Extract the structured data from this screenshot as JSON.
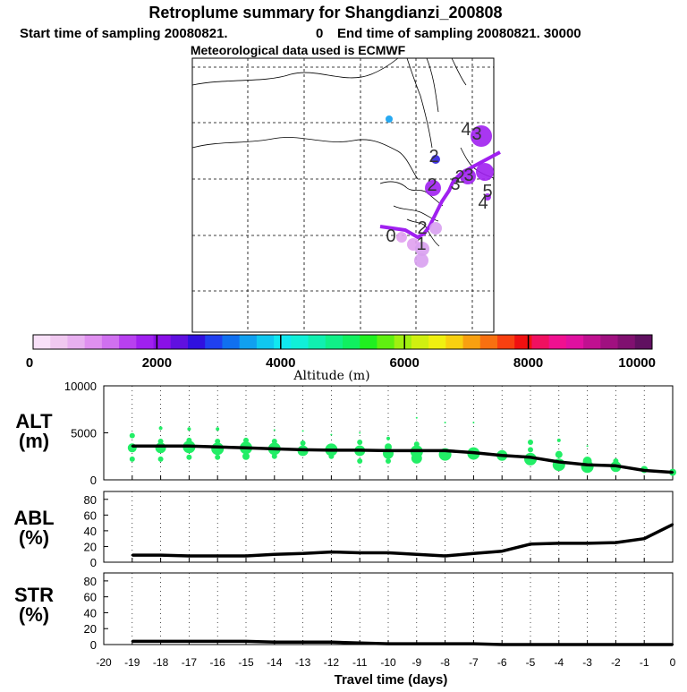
{
  "header": {
    "title": "Retroplume summary for Shangdianzi_200808",
    "start_label": "Start time of sampling 20080821.",
    "start_value": "0",
    "end_label": "End time of sampling 20080821. 30000",
    "met_label": "Meteorological data used is ECMWF"
  },
  "colors": {
    "background": "#ffffff",
    "line": "#000000",
    "trajectory": "#a020f0",
    "scatter": "#22ee66",
    "scale": [
      "#f8e0f8",
      "#f0c8f0",
      "#e8b0f0",
      "#e090f0",
      "#d070f0",
      "#b840f0",
      "#a020f0",
      "#8a10e8",
      "#6010e0",
      "#3010e0",
      "#2040f0",
      "#1070f0",
      "#10a0f0",
      "#10c8f0",
      "#10e8f0",
      "#10f0d8",
      "#10f0b0",
      "#10f088",
      "#10f060",
      "#20f020",
      "#60f010",
      "#a0f010",
      "#d0f010",
      "#f0f010",
      "#f8d010",
      "#f8a010",
      "#f87010",
      "#f84010",
      "#f01010",
      "#f01060",
      "#f01090",
      "#e010a0",
      "#c01090",
      "#a01080",
      "#801070",
      "#601060"
    ]
  },
  "map": {
    "name": "map-panel",
    "trajectory_points": [
      [
        0,
        188
      ],
      [
        14,
        190
      ],
      [
        28,
        192
      ],
      [
        42,
        200
      ],
      [
        49,
        196
      ],
      [
        55,
        188
      ],
      [
        59,
        180
      ],
      [
        63,
        172
      ],
      [
        69,
        160
      ],
      [
        77,
        148
      ],
      [
        81,
        139
      ],
      [
        85,
        134
      ],
      [
        90,
        129
      ],
      [
        104,
        121
      ],
      [
        119,
        113
      ],
      [
        134,
        105
      ]
    ],
    "plume_markers": [
      {
        "x": 24,
        "y": 200,
        "r": 6,
        "color": "#e0a0f0"
      },
      {
        "x": 37,
        "y": 208,
        "r": 7,
        "color": "#e0a0f0"
      },
      {
        "x": 47,
        "y": 213,
        "r": 8,
        "color": "#d8a0f0"
      },
      {
        "x": 46,
        "y": 226,
        "r": 8,
        "color": "#d8a0f0"
      },
      {
        "x": 62,
        "y": 190,
        "r": 7,
        "color": "#d8a0f0"
      },
      {
        "x": 59,
        "y": 145,
        "r": 9,
        "color": "#a020f0"
      },
      {
        "x": 98,
        "y": 132,
        "r": 9,
        "color": "#a020f0"
      },
      {
        "x": 117,
        "y": 127,
        "r": 10,
        "color": "#a020f0"
      },
      {
        "x": 113,
        "y": 87,
        "r": 12,
        "color": "#a020f0"
      },
      {
        "x": 62,
        "y": 113,
        "r": 5,
        "color": "#3020e0"
      },
      {
        "x": 120,
        "y": 155,
        "r": 4,
        "color": "#a020f0"
      },
      {
        "x": 10,
        "y": 68,
        "r": 4,
        "color": "#10a0f0"
      }
    ],
    "labels": [
      {
        "text": "0",
        "x": 12,
        "y": 205
      },
      {
        "text": "1",
        "x": 46,
        "y": 214
      },
      {
        "text": "2",
        "x": 47,
        "y": 196
      },
      {
        "text": "3",
        "x": 84,
        "y": 147
      },
      {
        "text": "2",
        "x": 89,
        "y": 139
      },
      {
        "text": "3",
        "x": 99,
        "y": 137
      },
      {
        "text": "2",
        "x": 58,
        "y": 148
      },
      {
        "text": "2",
        "x": 60,
        "y": 116
      },
      {
        "text": "4",
        "x": 96,
        "y": 86
      },
      {
        "text": "3",
        "x": 108,
        "y": 91
      },
      {
        "text": "5",
        "x": 120,
        "y": 155
      },
      {
        "text": "4",
        "x": 115,
        "y": 168
      }
    ]
  },
  "colorbar": {
    "ticks": [
      "0",
      "2000",
      "4000",
      "6000",
      "8000",
      "10000"
    ],
    "label": "Altitude (m)"
  },
  "chart_data": [
    {
      "type": "scatter",
      "panel": "ALT",
      "ylabel": "ALT",
      "yunit": "(m)",
      "ylim": [
        0,
        10000
      ],
      "yticks": [
        "10000",
        "5000",
        "0"
      ],
      "xlim": [
        -20,
        0
      ],
      "line_x": [
        -19,
        -18,
        -17,
        -16,
        -15,
        -14,
        -13,
        -12,
        -11,
        -10,
        -9,
        -8,
        -7,
        -6,
        -5,
        -4,
        -3,
        -2,
        -1,
        0
      ],
      "line_y": [
        3600,
        3600,
        3600,
        3500,
        3400,
        3300,
        3200,
        3150,
        3150,
        3100,
        3100,
        3100,
        2900,
        2600,
        2400,
        1900,
        1600,
        1500,
        1000,
        800
      ],
      "scatter": [
        {
          "x": -19,
          "y": 4700,
          "s": 3
        },
        {
          "x": -19,
          "y": 3400,
          "s": 5
        },
        {
          "x": -19,
          "y": 2200,
          "s": 3
        },
        {
          "x": -18,
          "y": 5500,
          "s": 2
        },
        {
          "x": -18,
          "y": 4100,
          "s": 3
        },
        {
          "x": -18,
          "y": 3400,
          "s": 6
        },
        {
          "x": -18,
          "y": 2200,
          "s": 3
        },
        {
          "x": -17,
          "y": 5400,
          "s": 2
        },
        {
          "x": -17,
          "y": 4200,
          "s": 3
        },
        {
          "x": -17,
          "y": 3500,
          "s": 7
        },
        {
          "x": -17,
          "y": 2400,
          "s": 3
        },
        {
          "x": -16,
          "y": 5400,
          "s": 2
        },
        {
          "x": -16,
          "y": 4100,
          "s": 3
        },
        {
          "x": -16,
          "y": 3300,
          "s": 7
        },
        {
          "x": -16,
          "y": 2400,
          "s": 3
        },
        {
          "x": -15,
          "y": 4200,
          "s": 3
        },
        {
          "x": -15,
          "y": 3400,
          "s": 7
        },
        {
          "x": -15,
          "y": 2500,
          "s": 4
        },
        {
          "x": -14,
          "y": 5300,
          "s": 1
        },
        {
          "x": -14,
          "y": 4100,
          "s": 3
        },
        {
          "x": -14,
          "y": 3300,
          "s": 7
        },
        {
          "x": -14,
          "y": 2500,
          "s": 3
        },
        {
          "x": -13,
          "y": 5200,
          "s": 1
        },
        {
          "x": -13,
          "y": 3900,
          "s": 3
        },
        {
          "x": -13,
          "y": 3100,
          "s": 6
        },
        {
          "x": -12,
          "y": 4800,
          "s": 1
        },
        {
          "x": -12,
          "y": 3200,
          "s": 7
        },
        {
          "x": -12,
          "y": 2500,
          "s": 3
        },
        {
          "x": -11,
          "y": 5000,
          "s": 1
        },
        {
          "x": -11,
          "y": 4000,
          "s": 3
        },
        {
          "x": -11,
          "y": 3100,
          "s": 6
        },
        {
          "x": -11,
          "y": 2000,
          "s": 3
        },
        {
          "x": -10,
          "y": 4400,
          "s": 2
        },
        {
          "x": -10,
          "y": 3500,
          "s": 4
        },
        {
          "x": -10,
          "y": 2800,
          "s": 6
        },
        {
          "x": -10,
          "y": 2000,
          "s": 3
        },
        {
          "x": -9,
          "y": 6600,
          "s": 1
        },
        {
          "x": -9,
          "y": 3800,
          "s": 3
        },
        {
          "x": -9,
          "y": 3000,
          "s": 7
        },
        {
          "x": -9,
          "y": 2300,
          "s": 6
        },
        {
          "x": -8,
          "y": 6100,
          "s": 1
        },
        {
          "x": -8,
          "y": 2700,
          "s": 7
        },
        {
          "x": -7,
          "y": 6100,
          "s": 1
        },
        {
          "x": -7,
          "y": 2800,
          "s": 7
        },
        {
          "x": -6,
          "y": 2600,
          "s": 6
        },
        {
          "x": -5,
          "y": 4000,
          "s": 3
        },
        {
          "x": -5,
          "y": 3200,
          "s": 3
        },
        {
          "x": -5,
          "y": 2200,
          "s": 7
        },
        {
          "x": -4,
          "y": 4200,
          "s": 2
        },
        {
          "x": -4,
          "y": 2700,
          "s": 4
        },
        {
          "x": -4,
          "y": 1600,
          "s": 7
        },
        {
          "x": -3,
          "y": 3600,
          "s": 1
        },
        {
          "x": -3,
          "y": 2000,
          "s": 5
        },
        {
          "x": -3,
          "y": 1400,
          "s": 7
        },
        {
          "x": -2,
          "y": 2000,
          "s": 3
        },
        {
          "x": -2,
          "y": 1400,
          "s": 6
        },
        {
          "x": -1,
          "y": 1100,
          "s": 4
        },
        {
          "x": 0,
          "y": 800,
          "s": 4
        }
      ]
    },
    {
      "type": "line",
      "panel": "ABL",
      "ylabel": "ABL",
      "yunit": "(%)",
      "ylim": [
        0,
        90
      ],
      "yticks": [
        "80",
        "60",
        "40",
        "20",
        "0"
      ],
      "xlim": [
        -20,
        0
      ],
      "x": [
        -19,
        -18,
        -17,
        -16,
        -15,
        -14,
        -13,
        -12,
        -11,
        -10,
        -9,
        -8,
        -7,
        -6,
        -5,
        -4,
        -3,
        -2,
        -1,
        0
      ],
      "values": [
        9,
        9,
        8,
        8,
        8,
        10,
        11,
        13,
        12,
        12,
        10,
        8,
        11,
        14,
        23,
        24,
        24,
        25,
        30,
        48
      ]
    },
    {
      "type": "line",
      "panel": "STR",
      "ylabel": "STR",
      "yunit": "(%)",
      "ylim": [
        0,
        90
      ],
      "yticks": [
        "80",
        "60",
        "40",
        "20",
        "0"
      ],
      "xlim": [
        -20,
        0
      ],
      "x": [
        -19,
        -18,
        -17,
        -16,
        -15,
        -14,
        -13,
        -12,
        -11,
        -10,
        -9,
        -8,
        -7,
        -6,
        -5,
        -4,
        -3,
        -2,
        -1,
        0
      ],
      "values": [
        4,
        4,
        4,
        4,
        4,
        3,
        3,
        3,
        2,
        1,
        1,
        1,
        1,
        0,
        0,
        0,
        0,
        0,
        0,
        0
      ]
    }
  ],
  "xaxis": {
    "ticks": [
      "-20",
      "-19",
      "-18",
      "-17",
      "-16",
      "-15",
      "-14",
      "-13",
      "-12",
      "-11",
      "-10",
      "-9",
      "-8",
      "-7",
      "-6",
      "-5",
      "-4",
      "-3",
      "-2",
      "-1",
      "0"
    ],
    "label": "Travel time (days)"
  }
}
